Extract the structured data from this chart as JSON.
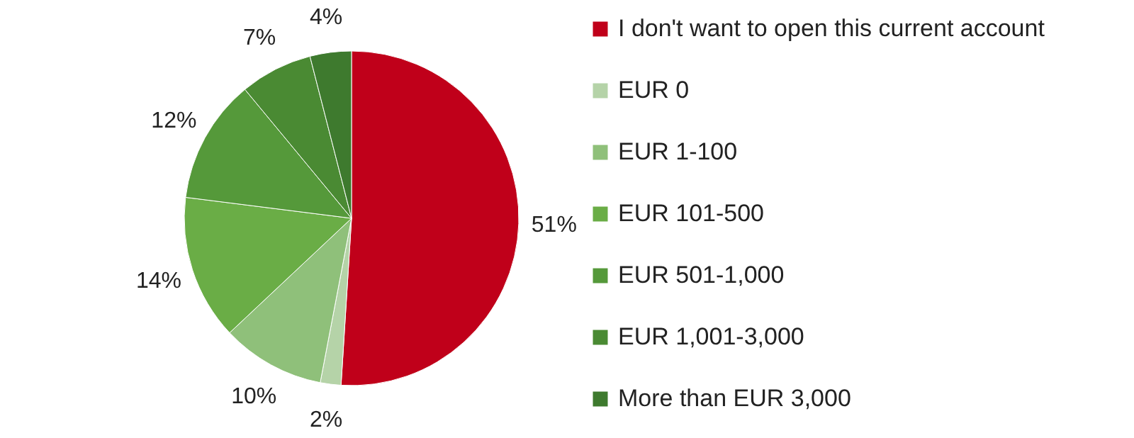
{
  "chart_data": {
    "type": "pie",
    "categories": [
      "I don't want to open this current account",
      "EUR 0",
      "EUR 1-100",
      "EUR 101-500",
      "EUR 501-1,000",
      "EUR 1,001-3,000",
      "More than EUR 3,000"
    ],
    "values": [
      51,
      2,
      10,
      14,
      12,
      7,
      4
    ],
    "colors": [
      "#c0001a",
      "#b5d3a8",
      "#8fc07a",
      "#6aad46",
      "#55993a",
      "#4a8a33",
      "#3e7a2e"
    ],
    "value_labels": [
      "51%",
      "2%",
      "10%",
      "14%",
      "12%",
      "7%",
      "4%"
    ],
    "legend": "right"
  }
}
